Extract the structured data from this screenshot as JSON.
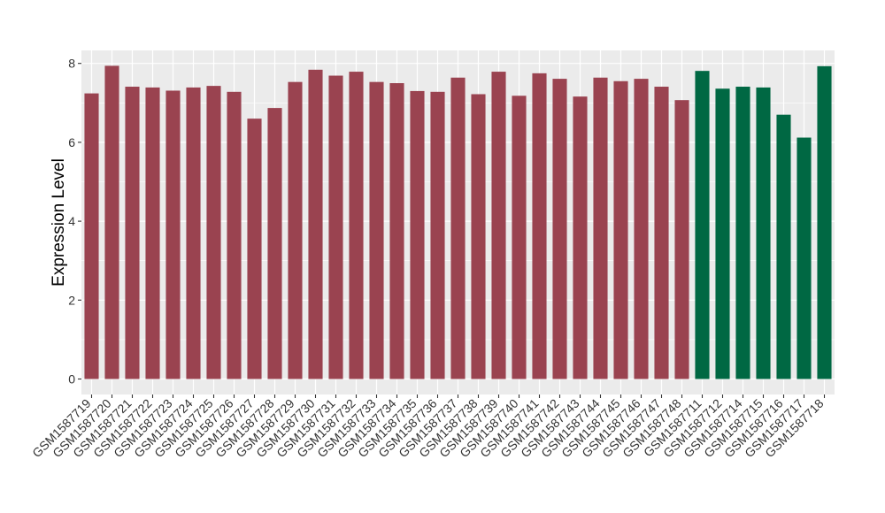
{
  "chart_data": {
    "type": "bar",
    "title": "",
    "xlabel": "",
    "ylabel": "Expression Level",
    "ylim": [
      0,
      8.3
    ],
    "yticks": [
      0,
      2,
      4,
      6,
      8
    ],
    "grid": true,
    "legend": "none",
    "colors": {
      "group_a": "#9a4350",
      "group_b": "#006843",
      "panel": "#ebebeb",
      "grid": "#ffffff"
    },
    "categories": [
      "GSM1587719",
      "GSM1587720",
      "GSM1587721",
      "GSM1587722",
      "GSM1587723",
      "GSM1587724",
      "GSM1587725",
      "GSM1587726",
      "GSM1587727",
      "GSM1587728",
      "GSM1587729",
      "GSM1587730",
      "GSM1587731",
      "GSM1587732",
      "GSM1587733",
      "GSM1587734",
      "GSM1587735",
      "GSM1587736",
      "GSM1587737",
      "GSM1587738",
      "GSM1587739",
      "GSM1587740",
      "GSM1587741",
      "GSM1587742",
      "GSM1587743",
      "GSM1587744",
      "GSM1587745",
      "GSM1587746",
      "GSM1587747",
      "GSM1587748",
      "GSM1587711",
      "GSM1587712",
      "GSM1587714",
      "GSM1587715",
      "GSM1587716",
      "GSM1587717",
      "GSM1587718"
    ],
    "values": [
      7.24,
      7.94,
      7.41,
      7.39,
      7.31,
      7.39,
      7.43,
      7.28,
      6.6,
      6.87,
      7.53,
      7.84,
      7.69,
      7.79,
      7.53,
      7.5,
      7.3,
      7.28,
      7.64,
      7.22,
      7.79,
      7.18,
      7.75,
      7.61,
      7.16,
      7.64,
      7.55,
      7.61,
      7.41,
      7.07,
      7.81,
      7.36,
      7.41,
      7.39,
      6.7,
      6.12,
      7.93
    ],
    "groups": [
      "a",
      "a",
      "a",
      "a",
      "a",
      "a",
      "a",
      "a",
      "a",
      "a",
      "a",
      "a",
      "a",
      "a",
      "a",
      "a",
      "a",
      "a",
      "a",
      "a",
      "a",
      "a",
      "a",
      "a",
      "a",
      "a",
      "a",
      "a",
      "a",
      "a",
      "b",
      "b",
      "b",
      "b",
      "b",
      "b",
      "b"
    ]
  }
}
